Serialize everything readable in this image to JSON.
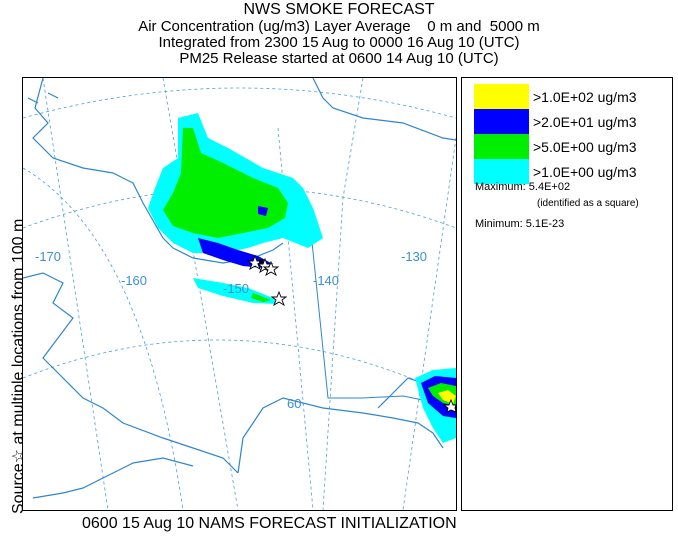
{
  "title": {
    "main": "NWS SMOKE FORECAST",
    "line1": "Air Concentration (ug/m3) Layer Average    0 m and  5000 m",
    "line2": "Integrated from 2300 15 Aug to 0000 16 Aug 10 (UTC)",
    "line3": "PM25 Release started at 0600 14 Aug 10 (UTC)"
  },
  "side_label": "Source☆ at multiple locations   from   100 m",
  "footer": "0600 15 Aug 10 NAMS FORECAST INITIALIZATION",
  "legend": {
    "items": [
      {
        "color": "#ffff00",
        "label": ">1.0E+02 ug/m3"
      },
      {
        "color": "#0000ff",
        "label": ">2.0E+01 ug/m3"
      },
      {
        "color": "#00ee00",
        "label": ">5.0E+00 ug/m3"
      },
      {
        "color": "#00ffff",
        "label": ">1.0E+00 ug/m3"
      }
    ],
    "maximum_label": "Maximum: 5.4E+02",
    "maximum_note": "(identified as a square)",
    "minimum_label": "Minimum: 5.1E-23"
  },
  "map": {
    "longitude_labels": [
      "-170",
      "-160",
      "-150",
      "-140",
      "-130"
    ],
    "latitude_labels": [
      "60"
    ],
    "colors": {
      "coast": "#2f86d0",
      "grid": "#4a9ee0",
      "border": "#2f86d0",
      "source_star": "#000000"
    }
  }
}
